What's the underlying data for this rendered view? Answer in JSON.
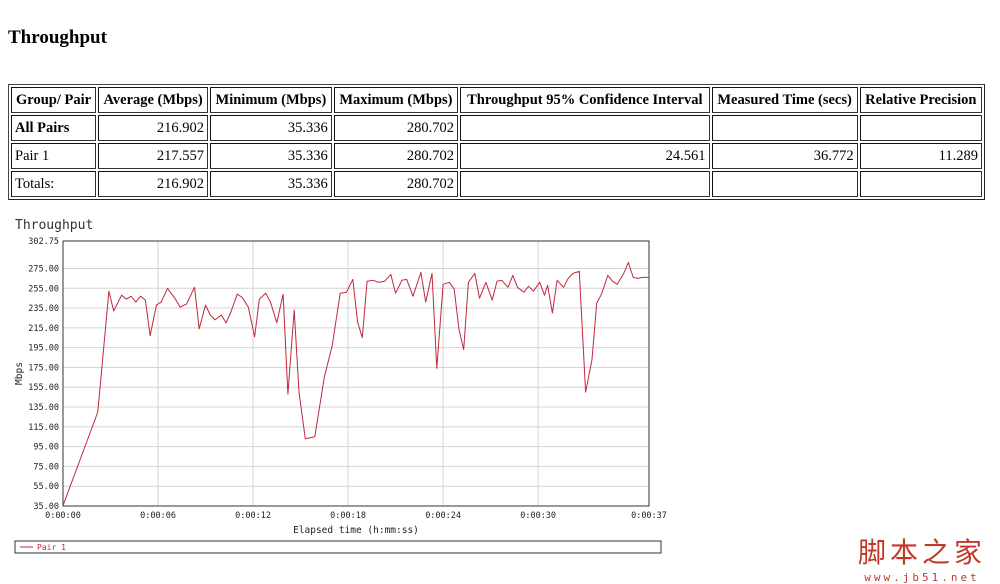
{
  "page": {
    "title": "Throughput"
  },
  "table": {
    "headers": [
      "Group/ Pair",
      "Average (Mbps)",
      "Minimum (Mbps)",
      "Maximum (Mbps)",
      "Throughput 95% Confidence Interval",
      "Measured Time (secs)",
      "Relative Precision"
    ],
    "rows": [
      [
        "All Pairs",
        "216.902",
        "35.336",
        "280.702",
        "",
        "",
        ""
      ],
      [
        "Pair 1",
        "217.557",
        "35.336",
        "280.702",
        "24.561",
        "36.772",
        "11.289"
      ],
      [
        "Totals:",
        "216.902",
        "35.336",
        "280.702",
        "",
        "",
        ""
      ]
    ]
  },
  "chart_data": {
    "type": "line",
    "title": "Throughput",
    "xlabel": "Elapsed time (h:mm:ss)",
    "ylabel": "Mbps",
    "xlim": [
      0,
      37
    ],
    "ylim": [
      35,
      302.75
    ],
    "y_ticks": [
      "35.00",
      "55.00",
      "75.00",
      "95.00",
      "115.00",
      "135.00",
      "155.00",
      "175.00",
      "195.00",
      "215.00",
      "235.00",
      "255.00",
      "275.00",
      "302.75"
    ],
    "y_tick_values": [
      35,
      55,
      75,
      95,
      115,
      135,
      155,
      175,
      195,
      215,
      235,
      255,
      275,
      302.75
    ],
    "x_ticks": [
      "0:00:00",
      "0:00:06",
      "0:00:12",
      "0:00:18",
      "0:00:24",
      "0:00:30",
      "0:00:37"
    ],
    "x_tick_values": [
      0,
      6,
      12,
      18,
      24,
      30,
      37
    ],
    "x_grid": [
      6,
      12,
      18,
      24,
      30
    ],
    "grid": true,
    "legend": "bottom",
    "line_color": "#c0283c",
    "series": [
      {
        "name": "Pair 1",
        "x": [
          0.0,
          2.2,
          2.9,
          3.2,
          3.7,
          4.0,
          4.3,
          4.6,
          4.9,
          5.2,
          5.5,
          5.9,
          6.2,
          6.6,
          7.1,
          7.4,
          7.8,
          8.3,
          8.6,
          9.0,
          9.3,
          9.6,
          10.0,
          10.3,
          10.6,
          11.0,
          11.3,
          11.7,
          12.1,
          12.4,
          12.8,
          13.1,
          13.5,
          13.9,
          14.2,
          14.6,
          14.9,
          15.3,
          15.6,
          15.9,
          16.5,
          17.0,
          17.5,
          17.9,
          18.3,
          18.6,
          18.9,
          19.2,
          19.6,
          19.9,
          20.3,
          20.7,
          21.0,
          21.4,
          21.7,
          22.1,
          22.6,
          22.9,
          23.3,
          23.6,
          24.0,
          24.4,
          24.7,
          25.0,
          25.3,
          25.6,
          26.0,
          26.3,
          26.7,
          27.1,
          27.4,
          27.7,
          28.1,
          28.4,
          28.7,
          29.1,
          29.4,
          29.7,
          30.1,
          30.4,
          30.6,
          30.9,
          31.2,
          31.6,
          31.9,
          32.2,
          32.6,
          33.0,
          33.4,
          33.7,
          34.0,
          34.4,
          34.7,
          35.0,
          35.4,
          35.7,
          36.0,
          36.3,
          36.6,
          37.0
        ],
        "y": [
          35.3,
          130.0,
          252.0,
          232.0,
          248.0,
          244.0,
          247.0,
          241.0,
          247.0,
          243.0,
          207.0,
          238.0,
          241.0,
          255.0,
          244.0,
          236.0,
          239.0,
          256.0,
          214.0,
          238.0,
          228.0,
          223.0,
          228.0,
          220.0,
          231.0,
          249.0,
          246.0,
          236.0,
          206.0,
          244.0,
          250.0,
          241.0,
          220.0,
          249.0,
          148.0,
          233.0,
          150.0,
          103.0,
          104.0,
          105.0,
          165.0,
          197.0,
          250.0,
          251.0,
          264.0,
          221.0,
          205.0,
          262.0,
          263.0,
          261.0,
          262.0,
          269.0,
          250.0,
          263.0,
          264.0,
          247.0,
          271.0,
          241.0,
          270.0,
          174.0,
          259.0,
          261.0,
          254.0,
          214.0,
          193.0,
          261.0,
          270.0,
          245.0,
          261.0,
          243.0,
          262.0,
          263.0,
          256.0,
          268.0,
          256.0,
          251.0,
          257.0,
          252.0,
          261.0,
          248.0,
          258.0,
          230.0,
          263.0,
          256.0,
          265.0,
          270.0,
          272.0,
          150.0,
          183.0,
          240.0,
          249.0,
          268.0,
          262.0,
          259.0,
          270.0,
          281.0,
          266.0,
          265.0,
          266.0,
          266.0
        ]
      }
    ]
  },
  "watermark": {
    "text": "脚本之家",
    "url": "www.jb51.net"
  }
}
